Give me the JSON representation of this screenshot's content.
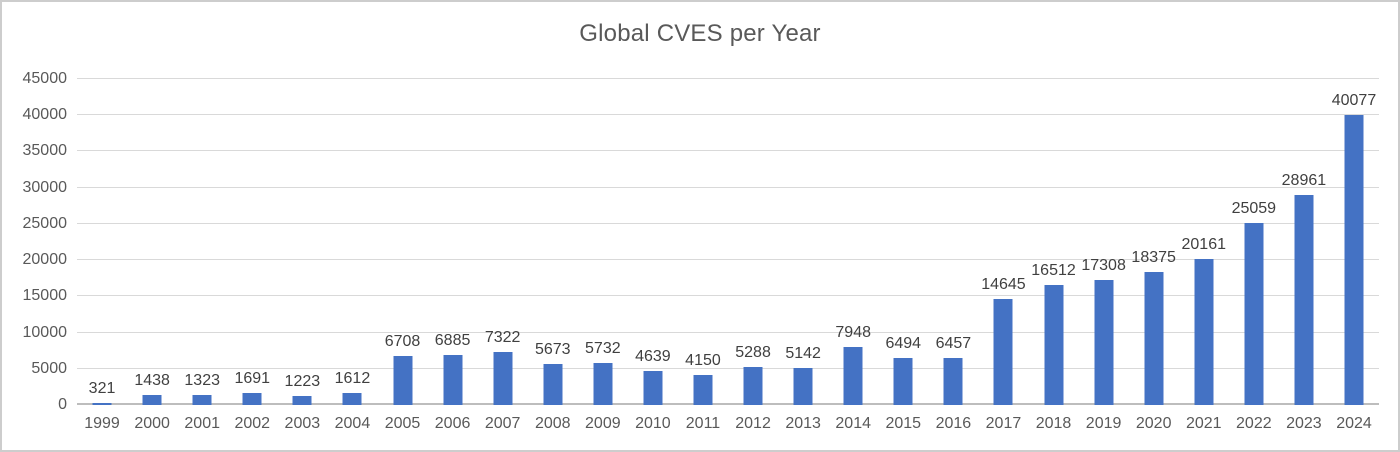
{
  "chart_data": {
    "type": "bar",
    "title": "Global CVES per Year",
    "xlabel": "",
    "ylabel": "",
    "categories": [
      "1999",
      "2000",
      "2001",
      "2002",
      "2003",
      "2004",
      "2005",
      "2006",
      "2007",
      "2008",
      "2009",
      "2010",
      "2011",
      "2012",
      "2013",
      "2014",
      "2015",
      "2016",
      "2017",
      "2018",
      "2019",
      "2020",
      "2021",
      "2022",
      "2023",
      "2024"
    ],
    "values": [
      321,
      1438,
      1323,
      1691,
      1223,
      1612,
      6708,
      6885,
      7322,
      5673,
      5732,
      4639,
      4150,
      5288,
      5142,
      7948,
      6494,
      6457,
      14645,
      16512,
      17308,
      18375,
      20161,
      25059,
      28961,
      40077
    ],
    "ylim": [
      0,
      45000
    ],
    "ytick_step": 5000,
    "grid": true,
    "legend": false,
    "data_labels": true,
    "colors": {
      "bar": "#4472C4",
      "gridline": "#D9D9D9",
      "axis_line": "#BDBDBD",
      "title": "#595959",
      "tick_label": "#595959",
      "data_label": "#404040"
    }
  }
}
